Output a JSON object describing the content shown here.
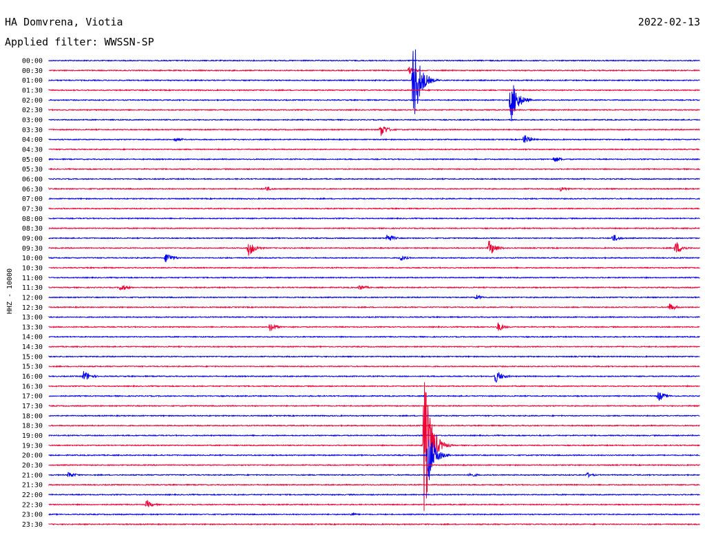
{
  "header": {
    "station": "HA Domvrena, Viotia",
    "filter_label": "Applied filter: WWSSN-SP",
    "date": "2022-02-13"
  },
  "chart_data": {
    "type": "helicorder",
    "ylabel": "HHZ - 10000",
    "rows": [
      "00:00",
      "00:30",
      "01:00",
      "01:30",
      "02:00",
      "02:30",
      "03:00",
      "03:30",
      "04:00",
      "04:30",
      "05:00",
      "05:30",
      "06:00",
      "06:30",
      "07:00",
      "07:30",
      "08:00",
      "08:30",
      "09:00",
      "09:30",
      "10:00",
      "10:30",
      "11:00",
      "11:30",
      "12:00",
      "12:30",
      "13:00",
      "13:30",
      "14:00",
      "14:30",
      "15:00",
      "15:30",
      "16:00",
      "16:30",
      "17:00",
      "17:30",
      "18:00",
      "18:30",
      "19:00",
      "19:30",
      "20:00",
      "20:30",
      "21:00",
      "21:30",
      "22:00",
      "22:30",
      "23:00",
      "23:30"
    ],
    "colors": [
      "#0000ee",
      "#ee0033"
    ],
    "trace_minutes": 30,
    "events": [
      {
        "row": "00:30",
        "minute": 16.6,
        "amplitude": 6
      },
      {
        "row": "01:00",
        "minute": 16.8,
        "amplitude": 70
      },
      {
        "row": "02:00",
        "minute": 21.3,
        "amplitude": 35
      },
      {
        "row": "03:30",
        "minute": 15.3,
        "amplitude": 10
      },
      {
        "row": "04:00",
        "minute": 21.9,
        "amplitude": 8
      },
      {
        "row": "04:00",
        "minute": 5.8,
        "amplitude": 4
      },
      {
        "row": "05:00",
        "minute": 23.3,
        "amplitude": 5
      },
      {
        "row": "06:30",
        "minute": 10.0,
        "amplitude": 4
      },
      {
        "row": "06:30",
        "minute": 23.6,
        "amplitude": 4
      },
      {
        "row": "09:00",
        "minute": 15.6,
        "amplitude": 7
      },
      {
        "row": "09:00",
        "minute": 26.0,
        "amplitude": 6
      },
      {
        "row": "09:30",
        "minute": 9.2,
        "amplitude": 12
      },
      {
        "row": "09:30",
        "minute": 20.3,
        "amplitude": 12
      },
      {
        "row": "09:30",
        "minute": 28.9,
        "amplitude": 10
      },
      {
        "row": "10:00",
        "minute": 5.4,
        "amplitude": 9
      },
      {
        "row": "10:00",
        "minute": 16.2,
        "amplitude": 5
      },
      {
        "row": "11:30",
        "minute": 3.3,
        "amplitude": 6
      },
      {
        "row": "11:30",
        "minute": 14.3,
        "amplitude": 5
      },
      {
        "row": "12:00",
        "minute": 19.7,
        "amplitude": 4
      },
      {
        "row": "12:30",
        "minute": 28.6,
        "amplitude": 6
      },
      {
        "row": "13:30",
        "minute": 10.2,
        "amplitude": 7
      },
      {
        "row": "13:30",
        "minute": 20.7,
        "amplitude": 7
      },
      {
        "row": "16:00",
        "minute": 1.6,
        "amplitude": 9
      },
      {
        "row": "16:00",
        "minute": 20.6,
        "amplitude": 10
      },
      {
        "row": "17:00",
        "minute": 28.1,
        "amplitude": 8
      },
      {
        "row": "19:30",
        "minute": 17.3,
        "amplitude": 110
      },
      {
        "row": "20:00",
        "minute": 17.5,
        "amplitude": 40
      },
      {
        "row": "21:00",
        "minute": 0.9,
        "amplitude": 5
      },
      {
        "row": "21:00",
        "minute": 19.4,
        "amplitude": 4
      },
      {
        "row": "21:00",
        "minute": 24.8,
        "amplitude": 4
      },
      {
        "row": "22:30",
        "minute": 4.5,
        "amplitude": 6
      },
      {
        "row": "23:00",
        "minute": 13.9,
        "amplitude": 3
      }
    ]
  }
}
